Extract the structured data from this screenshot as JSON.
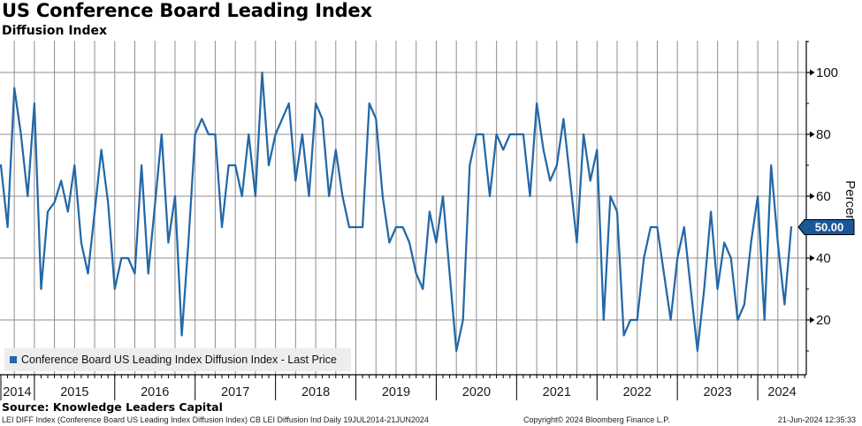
{
  "header": {
    "title": "US Conference Board Leading Index",
    "subtitle": "Diffusion Index"
  },
  "legend": {
    "label": "Conference Board US Leading Index Diffusion Index - Last Price"
  },
  "footer": {
    "source": "Source: Knowledge Leaders Capital",
    "description": "LEI DIFF Index (Conference Board US Leading Index Diffusion Index) CB LEI Diffusion Ind  Daily 19JUL2014-21JUN2024",
    "copyright": "Copyright© 2024 Bloomberg Finance L.P.",
    "timestamp": "21-Jun-2024 12:35:33"
  },
  "axis": {
    "ylabel": "Percent",
    "last_price_label": "50.00"
  },
  "colors": {
    "line": "#2368a8",
    "grid": "#8f8f8f",
    "axis": "#000000",
    "badge_bg": "#1a5796",
    "badge_text": "#ffffff",
    "legend_bg": "#ededed",
    "label_text": "#1a1a1a"
  },
  "chart_data": {
    "type": "line",
    "title": "US Conference Board Leading Index",
    "subtitle": "Diffusion Index",
    "ylabel": "Percent",
    "ylim": [
      0,
      110
    ],
    "yticks_major": [
      20,
      40,
      60,
      80,
      100
    ],
    "yticks_minor": [
      10,
      30,
      50,
      70,
      90,
      110
    ],
    "x_unit": "month",
    "x_range_label": "19JUL2014-21JUN2024",
    "grid_vertical_every_months": 3,
    "legend_position": "bottom-left",
    "year_labels": [
      "2014",
      "2015",
      "2016",
      "2017",
      "2018",
      "2019",
      "2020",
      "2021",
      "2022",
      "2023",
      "2024"
    ],
    "year_boundary_indices": [
      5,
      17,
      29,
      41,
      53,
      65,
      77,
      89,
      101,
      113
    ],
    "last_price": 50.0,
    "series": [
      {
        "name": "Conference Board US Leading Index Diffusion Index - Last Price",
        "color": "#2368a8",
        "values": [
          70,
          50,
          95,
          80,
          60,
          90,
          30,
          55,
          58,
          65,
          55,
          70,
          45,
          35,
          55,
          75,
          58,
          30,
          40,
          40,
          35,
          70,
          35,
          57,
          80,
          45,
          60,
          15,
          45,
          80,
          85,
          80,
          80,
          50,
          70,
          70,
          60,
          80,
          60,
          100,
          70,
          80,
          85,
          90,
          65,
          80,
          60,
          90,
          85,
          60,
          75,
          60,
          50,
          50,
          50,
          90,
          85,
          60,
          45,
          50,
          50,
          45,
          35,
          30,
          55,
          45,
          60,
          35,
          10,
          20,
          70,
          80,
          80,
          60,
          80,
          75,
          80,
          80,
          80,
          60,
          90,
          75,
          65,
          70,
          85,
          65,
          45,
          80,
          65,
          75,
          20,
          60,
          55,
          15,
          20,
          20,
          40,
          50,
          50,
          35,
          20,
          40,
          50,
          30,
          10,
          30,
          55,
          30,
          45,
          40,
          20,
          25,
          45,
          60,
          20,
          70,
          45,
          25,
          50
        ]
      }
    ]
  }
}
